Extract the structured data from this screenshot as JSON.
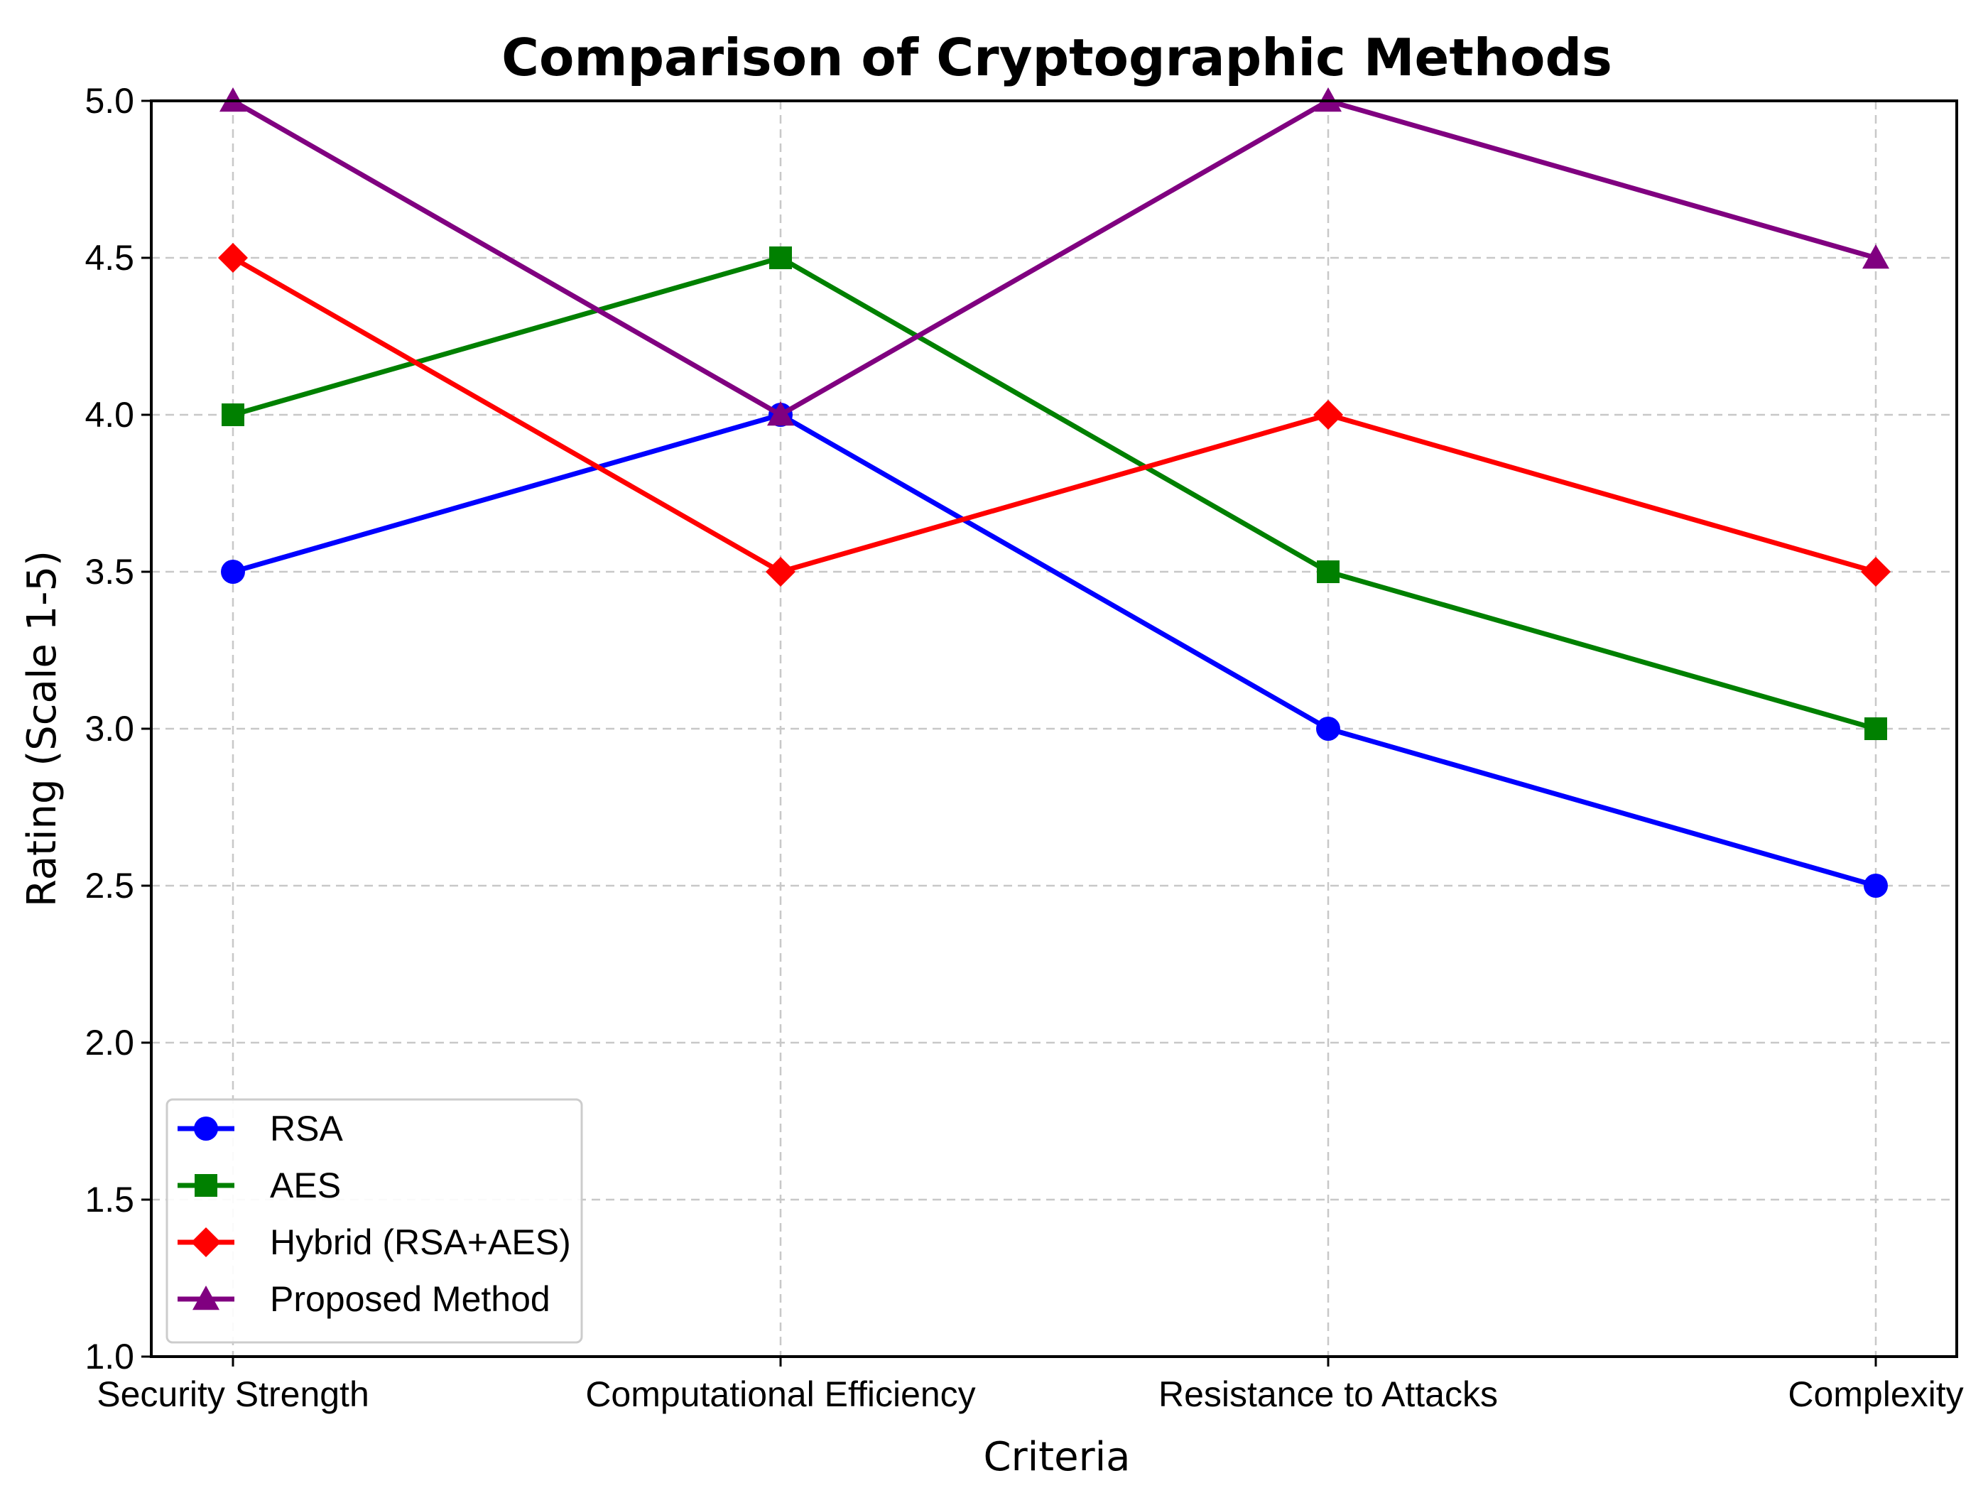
{
  "chart_data": {
    "type": "line",
    "title": "Comparison of Cryptographic Methods",
    "xlabel": "Criteria",
    "ylabel": "Rating (Scale 1-5)",
    "categories": [
      "Security Strength",
      "Computational Efficiency",
      "Resistance to Attacks",
      "Complexity"
    ],
    "ylim": [
      1.0,
      5.0
    ],
    "yticks": [
      "1.0",
      "1.5",
      "2.0",
      "2.5",
      "3.0",
      "3.5",
      "4.0",
      "4.5",
      "5.0"
    ],
    "grid": true,
    "legend_position": "lower-left",
    "series": [
      {
        "name": "RSA",
        "values": [
          3.5,
          4.0,
          3.0,
          2.5
        ],
        "color": "#0000ff",
        "marker": "circle"
      },
      {
        "name": "AES",
        "values": [
          4.0,
          4.5,
          3.5,
          3.0
        ],
        "color": "#008000",
        "marker": "square"
      },
      {
        "name": "Hybrid (RSA+AES)",
        "values": [
          4.5,
          3.5,
          4.0,
          3.5
        ],
        "color": "#ff0000",
        "marker": "diamond"
      },
      {
        "name": "Proposed Method",
        "values": [
          5.0,
          4.0,
          5.0,
          4.5
        ],
        "color": "#800080",
        "marker": "triangle"
      }
    ]
  }
}
